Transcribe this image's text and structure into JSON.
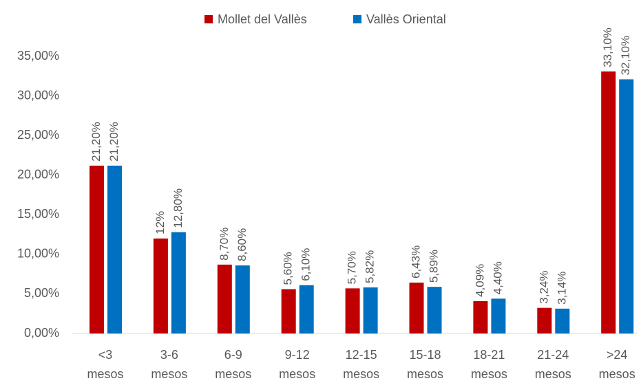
{
  "chart_data": {
    "type": "bar",
    "categories": [
      "<3 mesos",
      "3-6 mesos",
      "6-9 mesos",
      "9-12 mesos",
      "12-15 mesos",
      "15-18 mesos",
      "18-21 mesos",
      "21-24 mesos",
      ">24 mesos"
    ],
    "series": [
      {
        "name": "Mollet del Vallès",
        "color": "#c00000",
        "values": [
          21.2,
          12,
          8.7,
          5.6,
          5.7,
          6.43,
          4.09,
          3.24,
          33.1
        ],
        "value_labels": [
          "21,20%",
          "12%",
          "8,70%",
          "5,60%",
          "5,70%",
          "6,43%",
          "4,09%",
          "3,24%",
          "33,10%"
        ]
      },
      {
        "name": "Vallès Oriental",
        "color": "#0070c0",
        "values": [
          21.2,
          12.8,
          8.6,
          6.1,
          5.82,
          5.89,
          4.4,
          3.14,
          32.1
        ],
        "value_labels": [
          "21,20%",
          "12,80%",
          "8,60%",
          "6,10%",
          "5,82%",
          "5,89%",
          "4,40%",
          "3,14%",
          "32,10%"
        ]
      }
    ],
    "ylim": [
      0,
      35
    ],
    "yticks": [
      {
        "value": 0,
        "label": "0,00%"
      },
      {
        "value": 5,
        "label": "5,00%"
      },
      {
        "value": 10,
        "label": "10,00%"
      },
      {
        "value": 15,
        "label": "15,00%"
      },
      {
        "value": 20,
        "label": "20,00%"
      },
      {
        "value": 25,
        "label": "25,00%"
      },
      {
        "value": 30,
        "label": "30,00%"
      },
      {
        "value": 35,
        "label": "35,00%"
      }
    ],
    "grid": false
  }
}
